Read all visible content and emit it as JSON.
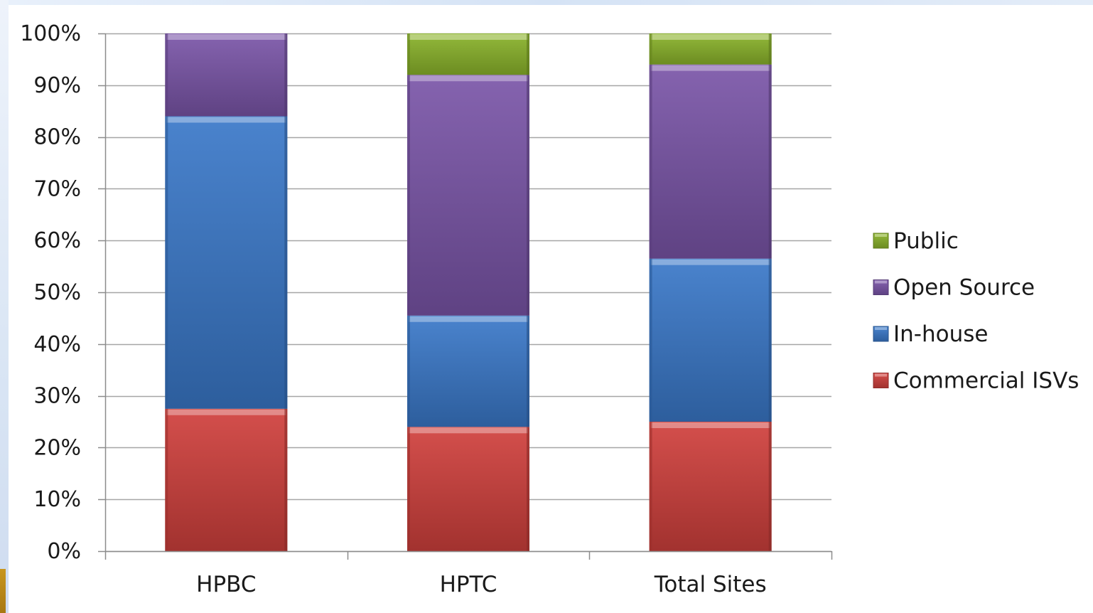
{
  "chart_data": {
    "type": "bar",
    "stacked": true,
    "categories": [
      "HPBC",
      "HPTC",
      "Total Sites"
    ],
    "series": [
      {
        "name": "Commercial ISVs",
        "values": [
          27.5,
          24,
          25
        ],
        "color": "#d0403c"
      },
      {
        "name": "In-house",
        "values": [
          56.5,
          21.5,
          31.5
        ],
        "color": "#3a78c9"
      },
      {
        "name": "Open Source",
        "values": [
          16,
          46.5,
          37.5
        ],
        "color": "#7a55a8"
      },
      {
        "name": "Public",
        "values": [
          0,
          8,
          6
        ],
        "color": "#8ab32a"
      }
    ],
    "y_ticks": [
      "0%",
      "10%",
      "20%",
      "30%",
      "40%",
      "50%",
      "60%",
      "70%",
      "80%",
      "90%",
      "100%"
    ],
    "ylim": [
      0,
      100
    ],
    "grid": true,
    "legend_position": "right",
    "legend_order": [
      "Public",
      "Open Source",
      "In-house",
      "Commercial ISVs"
    ]
  }
}
